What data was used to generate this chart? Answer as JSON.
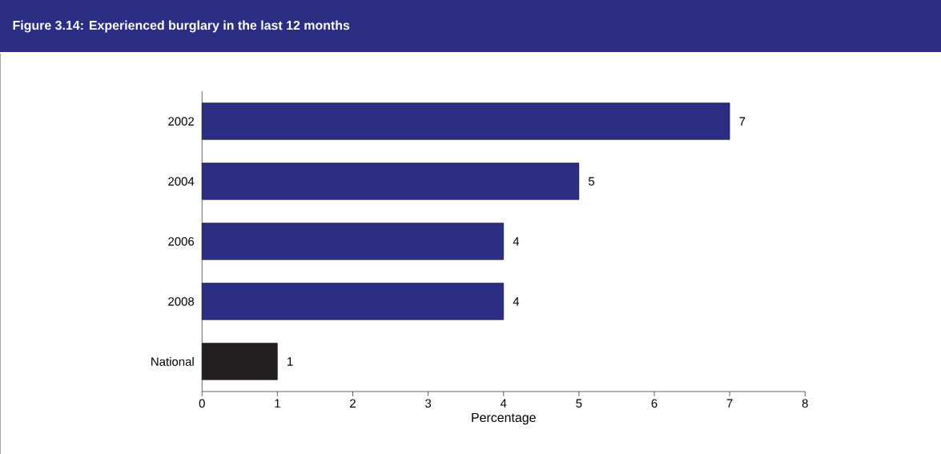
{
  "chart_data": {
    "type": "bar",
    "orientation": "horizontal",
    "title": "Figure 3.14:  Experienced burglary in the last 12 months",
    "categories": [
      "2002",
      "2004",
      "2006",
      "2008",
      "National"
    ],
    "values": [
      7,
      5,
      4,
      4,
      1
    ],
    "colors": [
      "#2b2e83",
      "#2b2e83",
      "#2b2e83",
      "#2b2e83",
      "#231f20"
    ],
    "xlabel": "Percentage",
    "xlim": [
      0,
      8
    ],
    "xticks": [
      0,
      1,
      2,
      3,
      4,
      5,
      6,
      7,
      8
    ],
    "data_labels": true,
    "grid": false
  }
}
